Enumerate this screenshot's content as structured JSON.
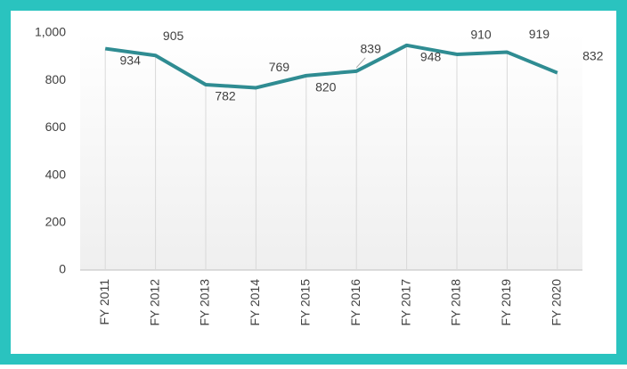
{
  "chart_data": {
    "type": "line",
    "categories": [
      "FY 2011",
      "FY 2012",
      "FY 2013",
      "FY 2014",
      "FY 2015",
      "FY 2016",
      "FY 2017",
      "FY 2018",
      "FY 2019",
      "FY 2020"
    ],
    "series": [
      {
        "color": "#2f8c92",
        "values": [
          934,
          905,
          782,
          769,
          820,
          839,
          948,
          910,
          919,
          832
        ]
      }
    ],
    "ylim": [
      0,
      1000
    ],
    "yticks": [
      0,
      200,
      400,
      600,
      800,
      {
        "value": 1000,
        "label": "1,000"
      }
    ],
    "drop_lines": true
  }
}
